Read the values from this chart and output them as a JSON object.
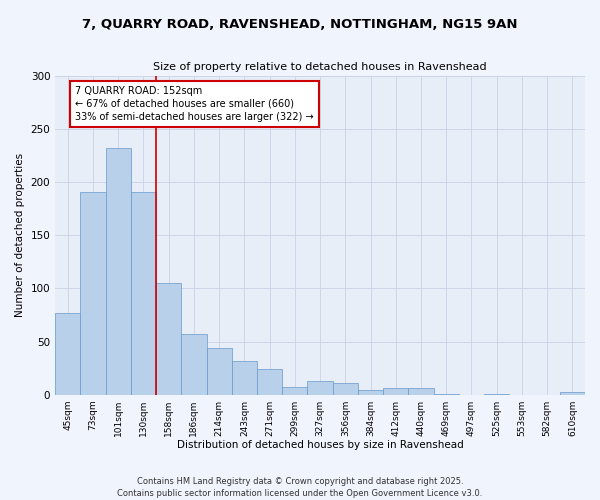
{
  "title_line1": "7, QUARRY ROAD, RAVENSHEAD, NOTTINGHAM, NG15 9AN",
  "title_line2": "Size of property relative to detached houses in Ravenshead",
  "xlabel": "Distribution of detached houses by size in Ravenshead",
  "ylabel": "Number of detached properties",
  "categories": [
    "45sqm",
    "73sqm",
    "101sqm",
    "130sqm",
    "158sqm",
    "186sqm",
    "214sqm",
    "243sqm",
    "271sqm",
    "299sqm",
    "327sqm",
    "356sqm",
    "384sqm",
    "412sqm",
    "440sqm",
    "469sqm",
    "497sqm",
    "525sqm",
    "553sqm",
    "582sqm",
    "610sqm"
  ],
  "values": [
    77,
    191,
    232,
    191,
    105,
    57,
    44,
    32,
    24,
    7,
    13,
    11,
    4,
    6,
    6,
    1,
    0,
    1,
    0,
    0,
    2
  ],
  "bar_color": "#b8d0ea",
  "bar_edge_color": "#6699cc",
  "grid_color": "#ccd6e8",
  "bg_color": "#e8eef8",
  "fig_bg_color": "#f0f4fc",
  "annotation_line1": "7 QUARRY ROAD: 152sqm",
  "annotation_line2": "← 67% of detached houses are smaller (660)",
  "annotation_line3": "33% of semi-detached houses are larger (322) →",
  "annotation_box_color": "#ffffff",
  "annotation_box_edge": "#cc0000",
  "vline_x_index": 3.5,
  "vline_color": "#cc0000",
  "ylim": [
    0,
    300
  ],
  "yticks": [
    0,
    50,
    100,
    150,
    200,
    250,
    300
  ],
  "footer_line1": "Contains HM Land Registry data © Crown copyright and database right 2025.",
  "footer_line2": "Contains public sector information licensed under the Open Government Licence v3.0."
}
